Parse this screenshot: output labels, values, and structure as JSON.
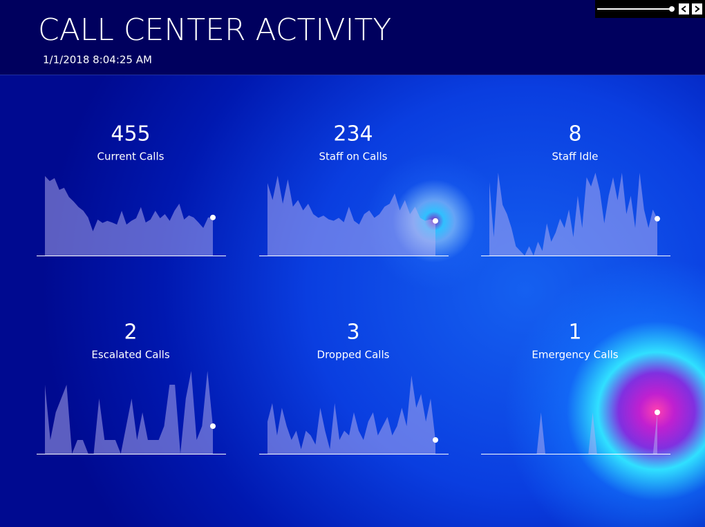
{
  "header": {
    "title": "CALL CENTER ACTIVITY",
    "timestamp": "1/1/2018 8:04:25 AM"
  },
  "chart_data": [
    {
      "type": "area",
      "kpi": 455,
      "title": "Current Calls",
      "color": "#b8b2f2",
      "ylim": [
        0,
        990
      ],
      "values": [
        950,
        890,
        925,
        785,
        810,
        700,
        645,
        580,
        535,
        455,
        290,
        430,
        390,
        415,
        395,
        370,
        535,
        370,
        415,
        445,
        580,
        395,
        430,
        535,
        445,
        495,
        415,
        535,
        620,
        430,
        480,
        455,
        395,
        330,
        455,
        455
      ]
    },
    {
      "type": "area",
      "kpi": 234,
      "title": "Staff on Calls",
      "color": "#b8b2f2",
      "ylim": [
        0,
        560
      ],
      "values": [
        490,
        375,
        540,
        350,
        515,
        330,
        375,
        305,
        350,
        280,
        255,
        270,
        245,
        235,
        255,
        225,
        330,
        235,
        210,
        280,
        305,
        255,
        280,
        330,
        350,
        420,
        305,
        375,
        280,
        330,
        255,
        235,
        245,
        234
      ]
    },
    {
      "type": "area",
      "kpi": 8,
      "title": "Staff Idle",
      "color": "#b8b2f2",
      "ylim": [
        0,
        18
      ],
      "values": [
        16,
        4,
        18,
        11,
        9,
        6,
        2,
        1,
        0,
        2,
        0,
        3,
        1,
        7,
        3,
        5,
        8,
        6,
        10,
        4,
        13,
        6,
        17,
        15,
        18,
        14,
        7,
        13,
        17,
        12,
        18,
        9,
        13,
        6,
        18,
        10,
        6,
        10,
        8
      ]
    },
    {
      "type": "area",
      "kpi": 2,
      "title": "Escalated Calls",
      "color": "#b8b2f2",
      "ylim": [
        0,
        6
      ],
      "values": [
        5,
        1,
        3,
        4,
        5,
        0,
        1,
        1,
        0,
        0,
        4,
        1,
        1,
        1,
        0,
        2,
        4,
        1,
        3,
        1,
        1,
        1,
        2,
        5,
        5,
        0,
        4,
        6,
        1,
        2,
        6,
        2
      ]
    },
    {
      "type": "area",
      "kpi": 3,
      "title": "Dropped Calls",
      "color": "#b8b2f2",
      "ylim": [
        0,
        18
      ],
      "values": [
        7,
        11,
        4,
        10,
        6,
        3,
        5,
        1,
        5,
        4,
        2,
        10,
        5,
        1,
        11,
        3,
        5,
        4,
        9,
        5,
        3,
        7,
        9,
        4,
        6,
        8,
        4,
        6,
        10,
        6,
        17,
        10,
        13,
        7,
        12,
        3
      ]
    },
    {
      "type": "area",
      "kpi": 1,
      "title": "Emergency Calls",
      "color": "#b8b2f2",
      "ylim": [
        0,
        2
      ],
      "values": [
        0,
        0,
        0,
        0,
        0,
        0,
        0,
        0,
        0,
        0,
        0,
        0,
        1,
        0,
        0,
        0,
        0,
        0,
        0,
        0,
        0,
        0,
        0,
        0,
        1,
        0,
        0,
        0,
        0,
        0,
        0,
        0,
        0,
        0,
        0,
        0,
        0,
        0,
        0,
        1
      ]
    }
  ]
}
